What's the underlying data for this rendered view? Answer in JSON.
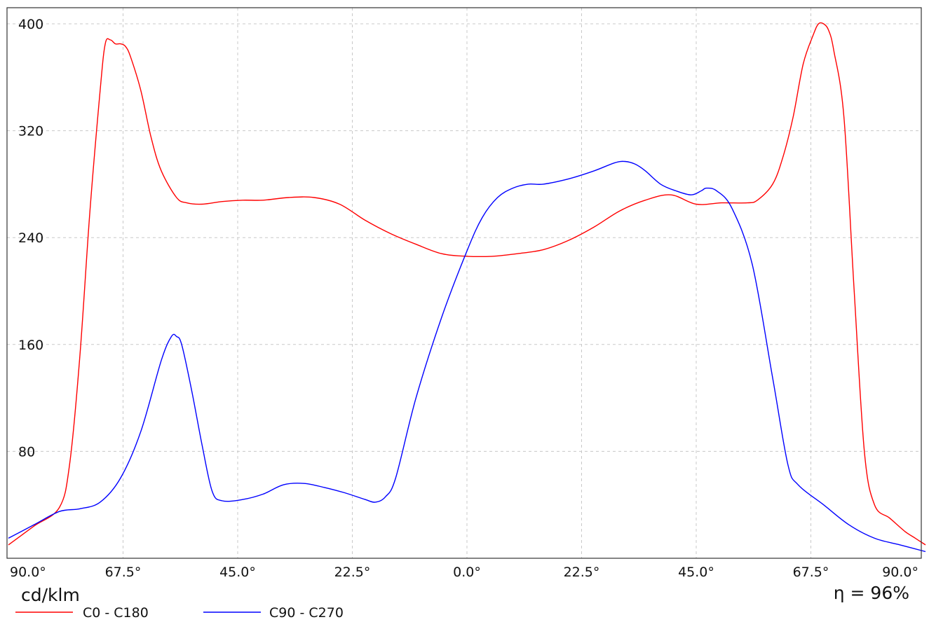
{
  "chart_data": {
    "type": "line",
    "unit_label": "cd/klm",
    "efficiency_label": "η = 96%",
    "ylim": [
      0,
      400
    ],
    "yticks": [
      "400",
      "320",
      "240",
      "160",
      "80"
    ],
    "ytick_values": [
      400,
      320,
      240,
      160,
      80
    ],
    "xticks": [
      "90.0°",
      "67.5°",
      "45.0°",
      "22.5°",
      "0.0°",
      "22.5°",
      "45.0°",
      "67.5°",
      "90.0°"
    ],
    "x_domain": [
      -90,
      90
    ],
    "grid": true,
    "legend_position": "bottom-left",
    "series": [
      {
        "name": "C0 - C180",
        "color": "#ff0000",
        "x": [
          -90,
          -85,
          -80,
          -78,
          -76,
          -74,
          -72,
          -71,
          -70,
          -69,
          -68,
          -67,
          -66,
          -64,
          -62,
          -60,
          -57,
          -55,
          -52,
          -48,
          -44,
          -40,
          -35,
          -30,
          -25,
          -20,
          -15,
          -10,
          -5,
          0,
          5,
          10,
          15,
          20,
          25,
          30,
          35,
          40,
          45,
          50,
          55,
          57,
          60,
          62,
          64,
          66,
          68,
          69,
          70,
          71,
          72,
          74,
          76,
          78,
          80,
          83,
          86,
          88,
          90
        ],
        "y": [
          10,
          24,
          38,
          70,
          150,
          260,
          350,
          385,
          388,
          385,
          385,
          383,
          375,
          350,
          315,
          290,
          270,
          266,
          265,
          267,
          268,
          268,
          270,
          270,
          265,
          253,
          243,
          235,
          228,
          226,
          226,
          228,
          231,
          238,
          248,
          260,
          268,
          272,
          265,
          266,
          266,
          268,
          280,
          300,
          330,
          370,
          392,
          400,
          400,
          395,
          380,
          330,
          200,
          80,
          40,
          30,
          20,
          15,
          10
        ]
      },
      {
        "name": "C90 - C270",
        "color": "#0000ff",
        "x": [
          -90,
          -85,
          -80,
          -76,
          -72,
          -68,
          -64,
          -60,
          -58,
          -57,
          -56,
          -54,
          -52,
          -50,
          -48,
          -44,
          -40,
          -36,
          -32,
          -28,
          -24,
          -20,
          -18,
          -16,
          -14,
          -10,
          -5,
          0,
          3,
          6,
          9,
          12,
          15,
          20,
          25,
          29,
          31,
          33,
          35,
          38,
          41,
          44,
          46,
          47,
          49,
          52,
          56,
          60,
          63,
          65,
          70,
          75,
          80,
          85,
          90
        ],
        "y": [
          15,
          25,
          35,
          37,
          42,
          60,
          95,
          148,
          166,
          166,
          160,
          125,
          85,
          50,
          43,
          44,
          48,
          55,
          56,
          53,
          49,
          44,
          42,
          46,
          60,
          120,
          180,
          230,
          255,
          270,
          277,
          280,
          280,
          284,
          290,
          296,
          297,
          295,
          290,
          280,
          275,
          272,
          275,
          277,
          275,
          262,
          220,
          135,
          70,
          55,
          40,
          25,
          15,
          10,
          5
        ]
      }
    ]
  }
}
